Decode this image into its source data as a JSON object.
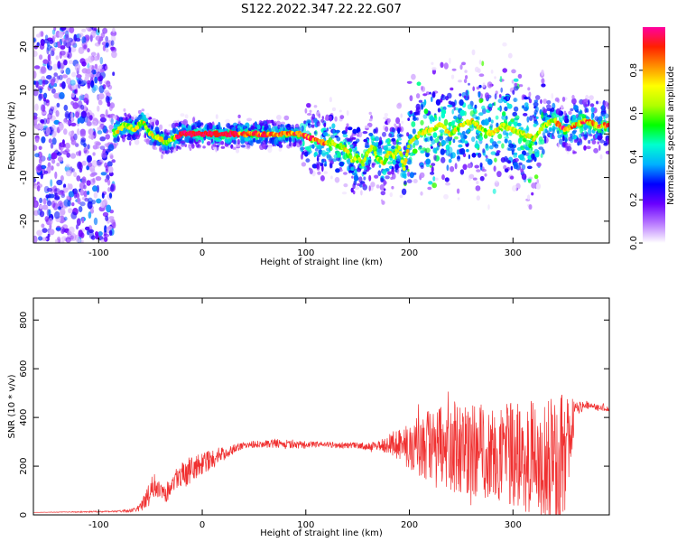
{
  "title": "S122.2022.347.22.22.G07",
  "chart_data": [
    {
      "type": "heatmap",
      "xlabel": "Height of straight line (km)",
      "ylabel": "Frequency (Hz)",
      "xlim": [
        -163,
        393
      ],
      "ylim": [
        -25,
        24.5
      ],
      "xticks": [
        -100,
        0,
        100,
        200,
        300
      ],
      "yticks": [
        -20,
        -10,
        0,
        10,
        20
      ],
      "colorbar": {
        "label": "Normalized spectral amplitude",
        "range": [
          0.0,
          1.0
        ],
        "ticks": [
          0.0,
          0.2,
          0.4,
          0.6,
          0.8
        ],
        "tick_labels": [
          "0.0",
          "0.2",
          "0.4",
          "0.6",
          "0.8"
        ],
        "colormap": [
          "#ffffff",
          "#b878ff",
          "#6a00ff",
          "#0000ff",
          "#00b0ff",
          "#00ffd0",
          "#00ff00",
          "#b0ff00",
          "#ffff00",
          "#ff9000",
          "#ff2000",
          "#ff00a0"
        ]
      },
      "ridge": {
        "x": [
          -85,
          -75,
          -65,
          -58,
          -50,
          -42,
          -35,
          -28,
          -20,
          -10,
          0,
          20,
          40,
          60,
          80,
          95,
          105,
          115,
          125,
          135,
          140,
          145,
          150,
          155,
          160,
          165,
          170,
          175,
          180,
          185,
          190,
          195,
          200,
          210,
          220,
          230,
          240,
          250,
          260,
          270,
          280,
          290,
          300,
          310,
          320,
          330,
          340,
          350,
          360,
          370,
          380,
          392
        ],
        "y": [
          0,
          2,
          1,
          3,
          0,
          -1,
          -2,
          -1,
          0,
          0,
          0,
          0,
          0,
          0,
          0,
          0,
          -1,
          -2,
          -2,
          -3,
          -4,
          -6,
          -5,
          -7,
          -4,
          -3,
          -6,
          -7,
          -4,
          -5,
          -3,
          -8,
          -2,
          0,
          1,
          2,
          0,
          2,
          3,
          1,
          0,
          2,
          1,
          0,
          -1,
          2,
          3,
          1,
          2,
          3,
          2,
          2
        ],
        "peak_segment_x": [
          -25,
          35
        ]
      }
    },
    {
      "type": "line",
      "series": [
        {
          "color": "#f03030",
          "x": [
            -163,
            -120,
            -80,
            -65,
            -60,
            -55,
            -50,
            -45,
            -40,
            -35,
            -30,
            -25,
            -20,
            -15,
            -10,
            -5,
            0,
            10,
            20,
            30,
            40,
            50,
            60,
            70,
            80,
            90,
            100,
            110,
            120,
            130,
            140,
            150,
            160,
            170,
            180,
            190,
            200,
            210,
            220,
            230,
            240,
            250,
            260,
            270,
            280,
            290,
            300,
            310,
            320,
            330,
            340,
            345,
            350,
            355,
            360,
            370,
            380,
            393
          ],
          "y": [
            10,
            12,
            15,
            20,
            30,
            60,
            100,
            120,
            110,
            90,
            120,
            150,
            170,
            160,
            190,
            200,
            210,
            230,
            250,
            270,
            285,
            290,
            290,
            295,
            290,
            285,
            285,
            290,
            290,
            285,
            285,
            285,
            280,
            285,
            290,
            290,
            285,
            285,
            280,
            275,
            280,
            270,
            265,
            260,
            255,
            250,
            240,
            235,
            230,
            220,
            230,
            240,
            250,
            350,
            430,
            450,
            440,
            440
          ],
          "spread": [
            0,
            2,
            4,
            8,
            15,
            40,
            60,
            50,
            40,
            40,
            40,
            50,
            50,
            50,
            50,
            50,
            45,
            40,
            30,
            20,
            15,
            15,
            15,
            20,
            20,
            15,
            15,
            12,
            12,
            12,
            12,
            12,
            15,
            20,
            40,
            70,
            110,
            140,
            160,
            170,
            180,
            190,
            200,
            200,
            200,
            210,
            220,
            230,
            240,
            250,
            260,
            270,
            250,
            180,
            40,
            20,
            15,
            15
          ]
        }
      ],
      "xlabel": "Height of straight line (km)",
      "ylabel": "SNR (10 * v/v)",
      "xlim": [
        -163,
        393
      ],
      "ylim": [
        0,
        890
      ],
      "xticks": [
        -100,
        0,
        100,
        200,
        300
      ],
      "yticks": [
        0,
        200,
        400,
        600,
        800
      ]
    }
  ]
}
